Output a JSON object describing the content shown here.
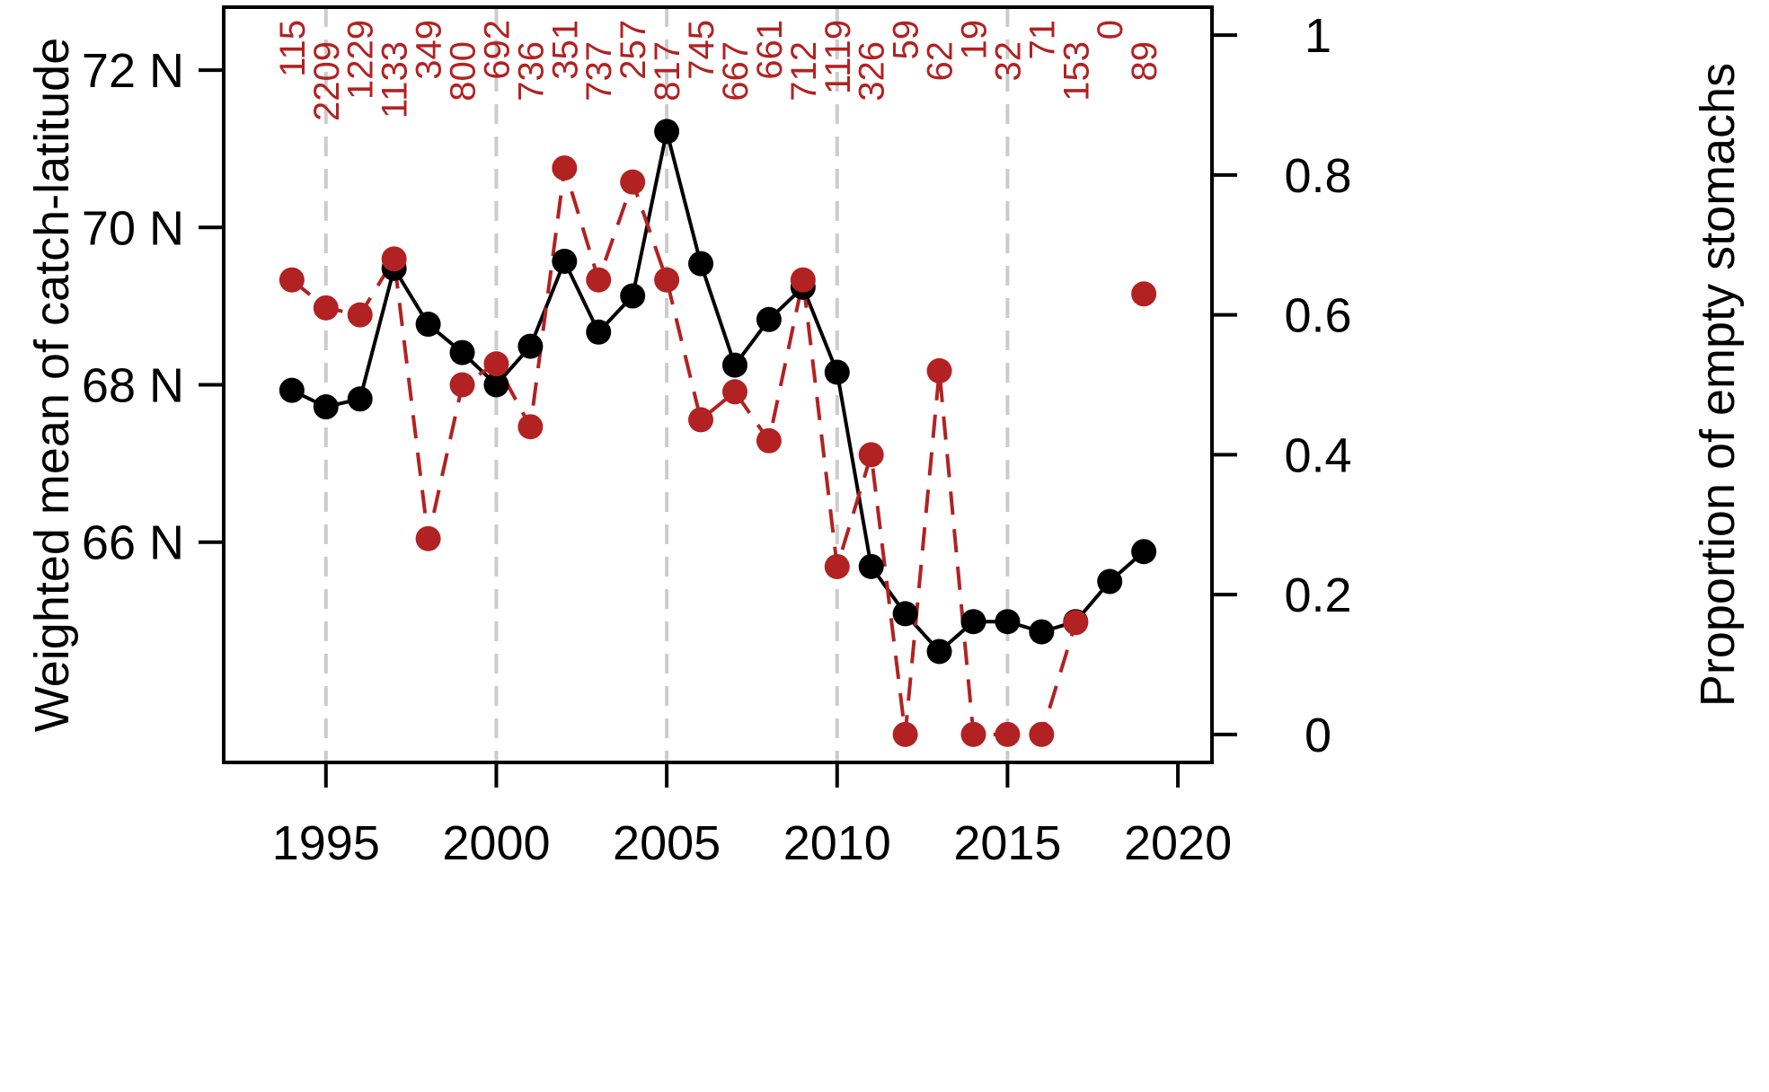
{
  "chart_data": {
    "type": "line",
    "x_axis": {
      "ticks": [
        1995,
        2000,
        2005,
        2010,
        2015,
        2020
      ],
      "tick_labels": [
        "1995",
        "2000",
        "2005",
        "2010",
        "2015",
        "2020"
      ],
      "range": [
        1992,
        2021
      ],
      "vertical_grid_at": [
        1995,
        2000,
        2005,
        2010,
        2015
      ],
      "grid_style": "dashed light gray"
    },
    "y_axis_left": {
      "label": "Weighted mean of catch-latitude",
      "ticks": [
        66,
        68,
        70,
        72
      ],
      "tick_labels": [
        "66 N",
        "68 N",
        "70 N",
        "72 N"
      ],
      "range": [
        63.2,
        72.8
      ]
    },
    "y_axis_right": {
      "label": "Proportion of empty stomachs",
      "ticks": [
        0,
        0.2,
        0.4,
        0.6,
        0.8,
        1
      ],
      "tick_labels": [
        "0",
        "0.2",
        "0.4",
        "0.6",
        "0.8",
        "1"
      ],
      "range": [
        -0.04,
        1.04
      ]
    },
    "series": [
      {
        "style": "solid line with filled circles",
        "color": "#000000",
        "axis": "left",
        "x": [
          1994,
          1995,
          1996,
          1997,
          1998,
          1999,
          2000,
          2001,
          2002,
          2003,
          2004,
          2005,
          2006,
          2007,
          2008,
          2009,
          2010,
          2011,
          2012,
          2013,
          2014,
          2015,
          2016,
          2017,
          2018,
          2019
        ],
        "y": [
          67.93,
          67.72,
          67.82,
          69.48,
          68.77,
          68.41,
          68.0,
          68.49,
          69.57,
          68.67,
          69.13,
          71.22,
          69.54,
          68.25,
          68.83,
          69.24,
          68.16,
          65.69,
          65.09,
          64.61,
          64.99,
          64.99,
          64.86,
          64.99,
          65.5,
          65.88
        ]
      },
      {
        "style": "dashed line with filled circles",
        "color": "#b22222",
        "axis": "right",
        "x": [
          1994,
          1995,
          1996,
          1997,
          1998,
          1999,
          2000,
          2001,
          2002,
          2003,
          2004,
          2005,
          2006,
          2007,
          2008,
          2009,
          2010,
          2011,
          2012,
          2013,
          2014,
          2015,
          2016,
          2017,
          2018,
          2019
        ],
        "y": [
          0.65,
          0.61,
          0.6,
          0.68,
          0.28,
          0.5,
          0.53,
          0.44,
          0.81,
          0.65,
          0.79,
          0.65,
          0.45,
          0.49,
          0.42,
          0.65,
          0.24,
          0.4,
          0.0,
          0.52,
          0.0,
          0.0,
          0.0,
          0.16,
          null,
          0.63
        ]
      }
    ],
    "sample_sizes": {
      "color": "#b22222",
      "x": [
        1994,
        1995,
        1996,
        1997,
        1998,
        1999,
        2000,
        2001,
        2002,
        2003,
        2004,
        2005,
        2006,
        2007,
        2008,
        2009,
        2010,
        2011,
        2012,
        2013,
        2014,
        2015,
        2016,
        2017,
        2018,
        2019
      ],
      "labels": [
        "115",
        "2209",
        "1229",
        "1133",
        "349",
        "800",
        "692",
        "736",
        "351",
        "737",
        "257",
        "817",
        "745",
        "667",
        "661",
        "712",
        "1119",
        "326",
        "59",
        "62",
        "19",
        "32",
        "71",
        "153",
        "0",
        "89"
      ]
    }
  }
}
